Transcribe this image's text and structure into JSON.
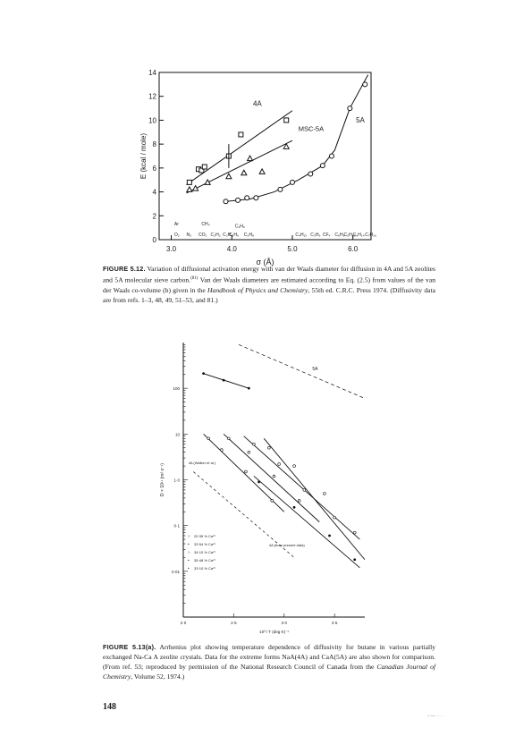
{
  "page_number": "148",
  "figure1": {
    "caption_label": "FIGURE 5.12.",
    "caption_text1": "Variation of diffusional activation energy with van der Waals diameter for diffusion in 4A and 5A zeolites and 5A molecular sieve carbon.",
    "caption_ref": "(81)",
    "caption_text2": "Van der Waals diameters are estimated according to Eq. (2.5) from values of the van der Waals co-volume (b) given in the",
    "caption_italic": "Handbook of Physics and Chemistry",
    "caption_text3": ", 55th ed. C.R.C. Press 1974. (Diffusivity data are from refs. 1–3, 48, 49, 51–53, and 81.)",
    "chart_data": {
      "type": "scatter",
      "ylabel": "E (kcal / mole)",
      "xlabel": "σ (Å)",
      "xlim": [
        2.8,
        6.3
      ],
      "ylim": [
        0,
        14
      ],
      "x_ticks": [
        "3.0",
        "4.0",
        "5.0",
        "6.0"
      ],
      "y_ticks": [
        "0",
        "2",
        "4",
        "6",
        "8",
        "10",
        "12",
        "14"
      ],
      "curve_labels": [
        "4A",
        "MSC-5A",
        "5A"
      ],
      "molecule_labels": [
        "Ar",
        "O₂",
        "N₂",
        "CO₂",
        "CH₄",
        "C₂H₂",
        "C₂H₄",
        "C₂H₆",
        "C₃H₆",
        "C₃H₈",
        "C₄H₁₀",
        "C₃H₆",
        "CF₄",
        "C₆H₆",
        "C₅H₁₂",
        "C₆H₁₄",
        "C₇H₁₆"
      ],
      "series": [
        {
          "name": "4A",
          "marker": "square",
          "x": [
            3.3,
            3.45,
            3.5,
            3.55,
            3.95,
            4.15,
            4.9
          ],
          "y": [
            4.8,
            5.9,
            5.8,
            6.1,
            7.0,
            8.8,
            10.0
          ]
        },
        {
          "name": "MSC-5A",
          "marker": "triangle",
          "x": [
            3.3,
            3.4,
            3.6,
            3.95,
            4.2,
            4.3,
            4.5,
            4.9
          ],
          "y": [
            4.2,
            4.3,
            4.8,
            5.3,
            5.6,
            6.8,
            5.7,
            7.8
          ]
        },
        {
          "name": "5A",
          "marker": "circle",
          "x": [
            3.9,
            4.1,
            4.25,
            4.4,
            4.8,
            5.0,
            5.3,
            5.5,
            5.65,
            5.95,
            6.2
          ],
          "y": [
            3.2,
            3.3,
            3.5,
            3.5,
            4.2,
            4.8,
            5.5,
            6.2,
            7.0,
            11.0,
            13.0
          ]
        }
      ]
    }
  },
  "figure2": {
    "caption_label": "FIGURE 5.13(a).",
    "caption_text1": "Arrhenius plot showing temperature dependence of diffusivity for butane in various partially exchanged Na-Ca A zeolite crystals. Data for the extreme forms NaA(4A) and CaA(5A) are also shown for comparison. (From ref. 53; reproduced by permission of the National Research Council of Canada from the",
    "caption_italic": "Canadian Journal of Chemistry",
    "caption_text2": ", Volume 52, 1974.)",
    "chart_data": {
      "type": "line",
      "ylabel": "D × 10¹¹ (m² s⁻¹)",
      "xlabel": "10³ / T   (deg K)⁻¹",
      "yscale": "log",
      "xlim": [
        2.0,
        3.8
      ],
      "ylim": [
        0.001,
        1000
      ],
      "x_ticks": [
        "2·0",
        "2·5",
        "3·0",
        "3·5"
      ],
      "y_ticks": [
        "0·01",
        "0·1",
        "1·0",
        "10",
        "100"
      ],
      "curve_labels": [
        "5A",
        "4A (Walker et al.)",
        "4A (from present data)"
      ],
      "legend": [
        "20·35 % Ca²⁺",
        "33·54 % Ca²⁺",
        "34·10 % Ca²⁺",
        "35·48 % Ca²⁺",
        "33·10 % Ca²⁺"
      ],
      "series": [
        {
          "name": "5A",
          "x": [
            2.2,
            2.4,
            2.65
          ],
          "y": [
            210,
            150,
            100
          ]
        },
        {
          "name": "20·35 % Ca²⁺",
          "x": [
            2.25,
            2.38,
            2.62,
            2.88
          ],
          "y": [
            8,
            4.5,
            1.5,
            0.35
          ]
        },
        {
          "name": "33·54 % Ca²⁺",
          "x": [
            2.45,
            2.65,
            2.9,
            3.15
          ],
          "y": [
            8,
            4,
            1.2,
            0.35
          ]
        },
        {
          "name": "34·10 % Ca²⁺",
          "x": [
            2.7,
            2.95,
            3.2,
            3.5
          ],
          "y": [
            6,
            2.2,
            0.6,
            0.15
          ]
        },
        {
          "name": "35·48 % Ca²⁺",
          "x": [
            2.85,
            3.1,
            3.4,
            3.7
          ],
          "y": [
            5,
            2,
            0.5,
            0.07
          ]
        },
        {
          "name": "33·10 % Ca²⁺",
          "x": [
            2.75,
            3.1,
            3.45,
            3.7
          ],
          "y": [
            0.9,
            0.25,
            0.06,
            0.018
          ]
        }
      ]
    }
  }
}
